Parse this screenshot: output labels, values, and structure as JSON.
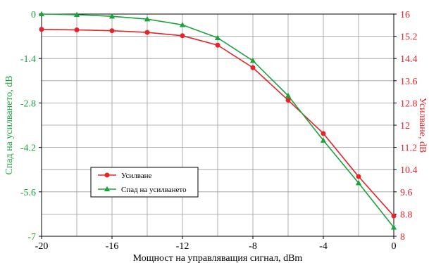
{
  "chart_data": {
    "type": "line",
    "xlabel": "Мощност на управляващия сигнал, dBm",
    "ylabel_left": "Спад на усилването, dB",
    "ylabel_right": "Усилване, dB",
    "xlim": [
      -20,
      0
    ],
    "ylim_left": [
      -7,
      0
    ],
    "ylim_right": [
      8,
      16
    ],
    "x_ticks": [
      "-20",
      "-16",
      "-12",
      "-8",
      "-4",
      "0"
    ],
    "y_left_ticks": [
      "0",
      "-1.4",
      "-2.8",
      "-4.2",
      "-5.6",
      "-7"
    ],
    "y_right_ticks": [
      "16",
      "15.2",
      "14.4",
      "13.6",
      "12.8",
      "12",
      "11.2",
      "10.4",
      "9.6",
      "8.8",
      "8"
    ],
    "grid": true,
    "legend_position": "lower-left",
    "series": [
      {
        "name": "Усилване",
        "axis": "right",
        "color": "#e8232a",
        "marker": "circle",
        "x": [
          -20,
          -18,
          -16,
          -14,
          -12,
          -10,
          -8,
          -6,
          -4,
          -2,
          0
        ],
        "y": [
          15.45,
          15.43,
          15.4,
          15.34,
          15.22,
          14.88,
          14.07,
          12.9,
          11.7,
          10.15,
          8.73
        ]
      },
      {
        "name": "Спад на усилването",
        "axis": "left",
        "color": "#1aa33a",
        "marker": "triangle",
        "x": [
          -20,
          -18,
          -16,
          -14,
          -12,
          -10,
          -8,
          -6,
          -4,
          -2,
          0
        ],
        "y": [
          0,
          -0.02,
          -0.07,
          -0.16,
          -0.34,
          -0.75,
          -1.47,
          -2.57,
          -3.98,
          -5.32,
          -6.72
        ]
      }
    ]
  }
}
